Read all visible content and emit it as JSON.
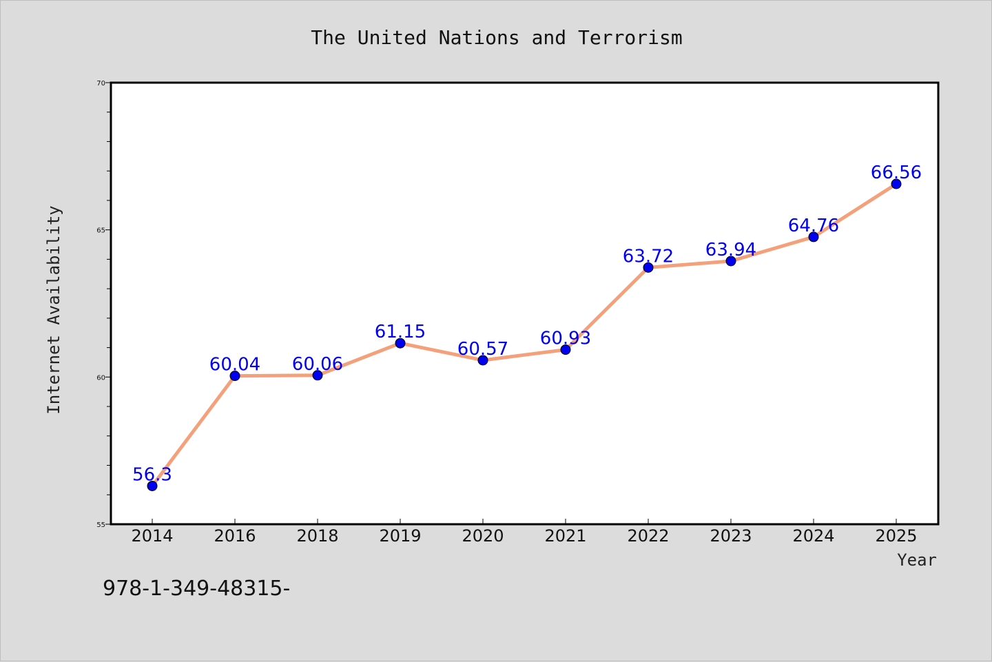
{
  "chart_data": {
    "type": "line",
    "title": "The United Nations and Terrorism",
    "xlabel": "Year",
    "ylabel": "Internet Availability",
    "categories": [
      "2014",
      "2016",
      "2018",
      "2019",
      "2020",
      "2021",
      "2022",
      "2023",
      "2024",
      "2025"
    ],
    "values": [
      56.3,
      60.04,
      60.06,
      61.15,
      60.57,
      60.93,
      63.72,
      63.94,
      64.76,
      66.56
    ],
    "data_labels": [
      "56.3",
      "60.04",
      "60.06",
      "61.15",
      "60.57",
      "60.93",
      "63.72",
      "63.94",
      "64.76",
      "66.56"
    ],
    "ylim": [
      55,
      70
    ],
    "yticks": [
      55,
      60,
      65,
      70
    ],
    "grid": false,
    "line_color": "#f4a07a",
    "marker_color": "#0000ee",
    "label_color": "#0000ee"
  },
  "footer_text": "978-1-349-48315-"
}
